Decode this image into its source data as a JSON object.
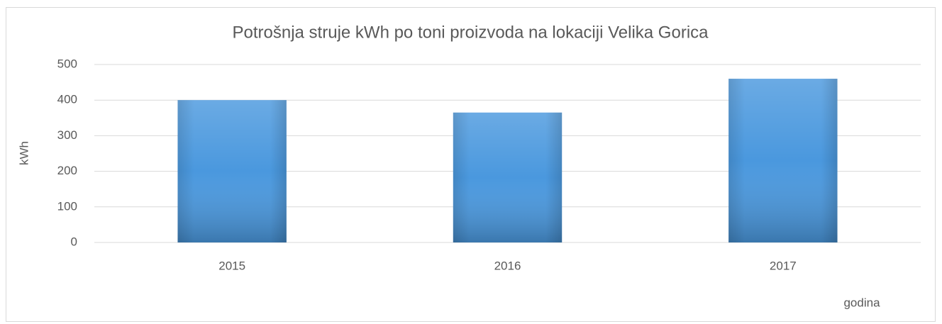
{
  "chart_data": {
    "type": "bar",
    "title": "Potrošnja struje kWh po toni proizvoda na lokaciji Velika Gorica",
    "y_label": "kWh",
    "x_label": "godina",
    "categories": [
      "2015",
      "2016",
      "2017"
    ],
    "values": [
      400,
      365,
      460
    ],
    "color": "#4a98de",
    "ylim": [
      0,
      500
    ],
    "yticks": [
      0,
      100,
      200,
      300,
      400,
      500
    ],
    "grid": true
  }
}
